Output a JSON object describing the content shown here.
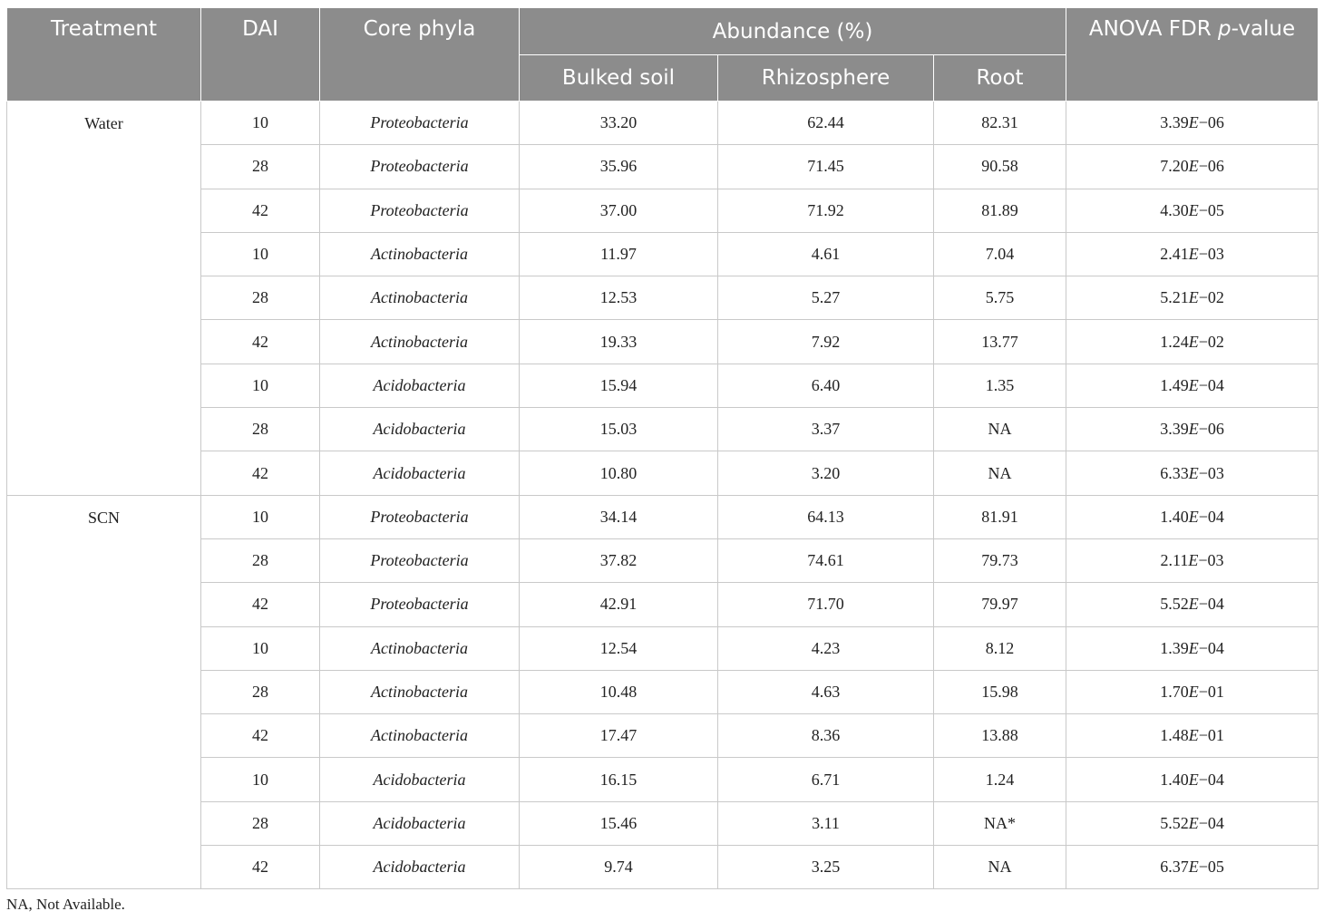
{
  "headers": {
    "treatment": "Treatment",
    "dai": "DAI",
    "core_phyla": "Core phyla",
    "abundance": "Abundance (%)",
    "bulked_soil": "Bulked soil",
    "rhizosphere": "Rhizosphere",
    "root": "Root",
    "anova_prefix": "ANOVA FDR ",
    "anova_p": "p",
    "anova_suffix": "-value"
  },
  "groups": [
    {
      "treatment": "Water",
      "rows": [
        {
          "dai": "10",
          "phylum": "Proteobacteria",
          "bulked": "33.20",
          "rhizo": "62.44",
          "root": "82.31",
          "p_mant": "3.39",
          "p_e": "E",
          "p_exp": "−06"
        },
        {
          "dai": "28",
          "phylum": "Proteobacteria",
          "bulked": "35.96",
          "rhizo": "71.45",
          "root": "90.58",
          "p_mant": "7.20",
          "p_e": "E",
          "p_exp": "−06"
        },
        {
          "dai": "42",
          "phylum": "Proteobacteria",
          "bulked": "37.00",
          "rhizo": "71.92",
          "root": "81.89",
          "p_mant": "4.30",
          "p_e": "E",
          "p_exp": "−05"
        },
        {
          "dai": "10",
          "phylum": "Actinobacteria",
          "bulked": "11.97",
          "rhizo": "4.61",
          "root": "7.04",
          "p_mant": "2.41",
          "p_e": "E",
          "p_exp": "−03"
        },
        {
          "dai": "28",
          "phylum": "Actinobacteria",
          "bulked": "12.53",
          "rhizo": "5.27",
          "root": "5.75",
          "p_mant": "5.21",
          "p_e": "E",
          "p_exp": "−02"
        },
        {
          "dai": "42",
          "phylum": "Actinobacteria",
          "bulked": "19.33",
          "rhizo": "7.92",
          "root": "13.77",
          "p_mant": "1.24",
          "p_e": "E",
          "p_exp": "−02"
        },
        {
          "dai": "10",
          "phylum": "Acidobacteria",
          "bulked": "15.94",
          "rhizo": "6.40",
          "root": "1.35",
          "p_mant": "1.49",
          "p_e": "E",
          "p_exp": "−04"
        },
        {
          "dai": "28",
          "phylum": "Acidobacteria",
          "bulked": "15.03",
          "rhizo": "3.37",
          "root": "NA",
          "p_mant": "3.39",
          "p_e": "E",
          "p_exp": "−06"
        },
        {
          "dai": "42",
          "phylum": "Acidobacteria",
          "bulked": "10.80",
          "rhizo": "3.20",
          "root": "NA",
          "p_mant": "6.33",
          "p_e": "E",
          "p_exp": "−03"
        }
      ]
    },
    {
      "treatment": "SCN",
      "rows": [
        {
          "dai": "10",
          "phylum": "Proteobacteria",
          "bulked": "34.14",
          "rhizo": "64.13",
          "root": "81.91",
          "p_mant": "1.40",
          "p_e": "E",
          "p_exp": "−04"
        },
        {
          "dai": "28",
          "phylum": "Proteobacteria",
          "bulked": "37.82",
          "rhizo": "74.61",
          "root": "79.73",
          "p_mant": "2.11",
          "p_e": "E",
          "p_exp": "−03"
        },
        {
          "dai": "42",
          "phylum": "Proteobacteria",
          "bulked": "42.91",
          "rhizo": "71.70",
          "root": "79.97",
          "p_mant": "5.52",
          "p_e": "E",
          "p_exp": "−04"
        },
        {
          "dai": "10",
          "phylum": "Actinobacteria",
          "bulked": "12.54",
          "rhizo": "4.23",
          "root": "8.12",
          "p_mant": "1.39",
          "p_e": "E",
          "p_exp": "−04"
        },
        {
          "dai": "28",
          "phylum": "Actinobacteria",
          "bulked": "10.48",
          "rhizo": "4.63",
          "root": "15.98",
          "p_mant": "1.70",
          "p_e": "E",
          "p_exp": "−01"
        },
        {
          "dai": "42",
          "phylum": "Actinobacteria",
          "bulked": "17.47",
          "rhizo": "8.36",
          "root": "13.88",
          "p_mant": "1.48",
          "p_e": "E",
          "p_exp": "−01"
        },
        {
          "dai": "10",
          "phylum": "Acidobacteria",
          "bulked": "16.15",
          "rhizo": "6.71",
          "root": "1.24",
          "p_mant": "1.40",
          "p_e": "E",
          "p_exp": "−04"
        },
        {
          "dai": "28",
          "phylum": "Acidobacteria",
          "bulked": "15.46",
          "rhizo": "3.11",
          "root": "NA*",
          "p_mant": "5.52",
          "p_e": "E",
          "p_exp": "−04"
        },
        {
          "dai": "42",
          "phylum": "Acidobacteria",
          "bulked": "9.74",
          "rhizo": "3.25",
          "root": "NA",
          "p_mant": "6.37",
          "p_e": "E",
          "p_exp": "−05"
        }
      ]
    }
  ],
  "footnote": "NA, Not Available.",
  "colors": {
    "header_bg": "#8c8c8c",
    "header_text": "#ffffff",
    "grid_line": "#c9c9c9"
  }
}
